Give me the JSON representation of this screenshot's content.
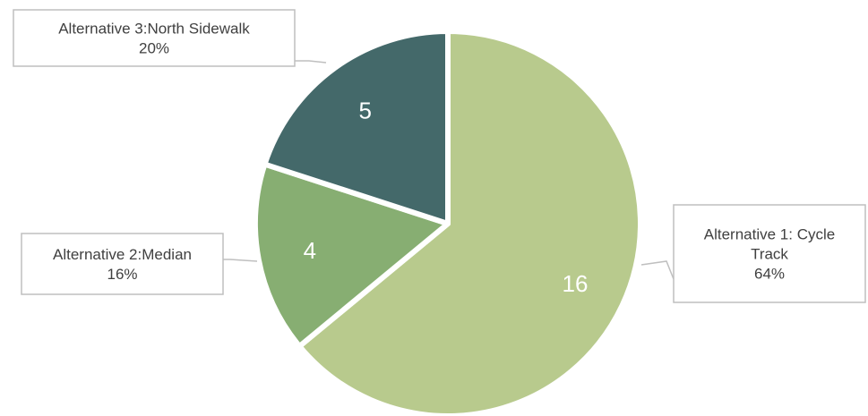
{
  "chart_data": {
    "type": "pie",
    "slices": [
      {
        "label": "Alternative 1: Cycle Track",
        "value": 16,
        "percent_label": "64%",
        "color": "#b8ca8d"
      },
      {
        "label": "Alternative 2:Median",
        "value": 4,
        "percent_label": "16%",
        "color": "#87ae72"
      },
      {
        "label": "Alternative 3:North Sidewalk",
        "value": 5,
        "percent_label": "20%",
        "color": "#44696a"
      }
    ],
    "start_angle_deg": 0,
    "direction": "clockwise",
    "value_label_color": "#ffffff",
    "callout_border_color": "#bfbfbf",
    "callout_text_color": "#404040"
  }
}
